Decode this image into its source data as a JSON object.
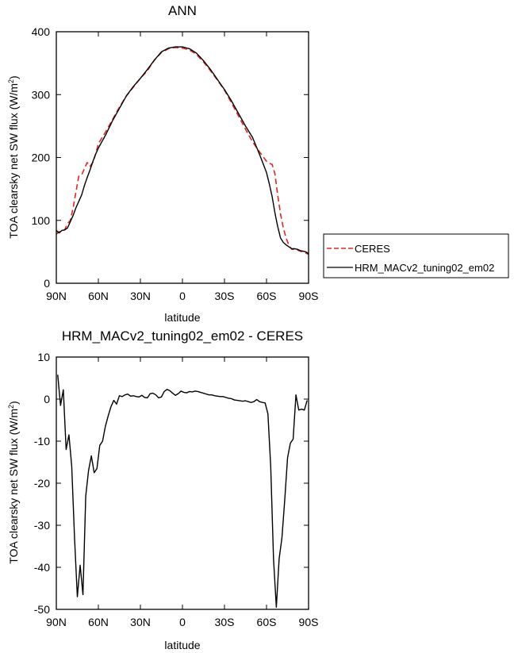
{
  "colors": {
    "ceres": "#e8231f",
    "model": "#000000",
    "frame": "#000000"
  },
  "chart_data": [
    {
      "type": "line",
      "title": "ANN",
      "xlabel": "latitude",
      "ylabel": "TOA clearsky net SW flux (W/m",
      "ylabel_sup": "2",
      "ylabel_end": ")",
      "xlim": [
        90,
        -90
      ],
      "ylim": [
        0,
        400
      ],
      "x_ticks": [
        90,
        60,
        30,
        0,
        -30,
        -60,
        -90
      ],
      "x_tick_labels": [
        "90N",
        "60N",
        "30N",
        "0",
        "30S",
        "60S",
        "90S"
      ],
      "y_ticks": [
        0,
        100,
        200,
        300,
        400
      ],
      "y_tick_labels": [
        "0",
        "100",
        "200",
        "300",
        "400"
      ],
      "legend": {
        "placement": "right-outside",
        "entries": [
          "CERES",
          "HRM_MACv2_tuning02_em02"
        ]
      },
      "series": [
        {
          "name": "CERES",
          "style": "dashed",
          "color_key": "ceres",
          "x": [
            90,
            88,
            86,
            84,
            82,
            80,
            78,
            76,
            74,
            72,
            70,
            68,
            66,
            64,
            62,
            60,
            55,
            50,
            45,
            40,
            35,
            30,
            25,
            20,
            15,
            10,
            5,
            0,
            -5,
            -10,
            -15,
            -20,
            -25,
            -30,
            -35,
            -40,
            -45,
            -50,
            -55,
            -60,
            -62,
            -64,
            -66,
            -68,
            -70,
            -72,
            -74,
            -76,
            -78,
            -80,
            -82,
            -84,
            -86,
            -88,
            -90
          ],
          "y": [
            78,
            82,
            82,
            85,
            95,
            100,
            120,
            145,
            170,
            172,
            182,
            192,
            186,
            192,
            205,
            222,
            240,
            260,
            280,
            298,
            312,
            326,
            338,
            355,
            367,
            373,
            375,
            374,
            371,
            364,
            352,
            338,
            323,
            307,
            287,
            266,
            245,
            225,
            209,
            194,
            191,
            189,
            174,
            140,
            110,
            88,
            72,
            60,
            54,
            54,
            53,
            51,
            50,
            48,
            46
          ]
        },
        {
          "name": "HRM_MACv2_tuning02_em02",
          "style": "solid",
          "color_key": "model",
          "x": [
            90,
            88,
            86,
            84,
            82,
            80,
            78,
            76,
            74,
            72,
            70,
            68,
            66,
            64,
            62,
            60,
            55,
            50,
            45,
            40,
            35,
            30,
            25,
            20,
            15,
            10,
            5,
            0,
            -5,
            -10,
            -15,
            -20,
            -25,
            -30,
            -35,
            -40,
            -45,
            -50,
            -55,
            -60,
            -62,
            -64,
            -66,
            -68,
            -70,
            -72,
            -74,
            -76,
            -78,
            -80,
            -82,
            -84,
            -86,
            -88,
            -90
          ],
          "y": [
            84,
            80,
            84,
            85,
            88,
            98,
            108,
            120,
            130,
            140,
            155,
            168,
            180,
            193,
            205,
            215,
            235,
            258,
            278,
            298,
            313,
            326,
            340,
            355,
            368,
            374,
            376,
            376,
            373,
            366,
            354,
            340,
            324,
            308,
            290,
            270,
            250,
            232,
            205,
            176,
            158,
            138,
            112,
            90,
            72,
            65,
            61,
            58,
            55,
            55,
            54,
            52,
            51,
            50,
            47
          ]
        }
      ]
    },
    {
      "type": "line",
      "title": "HRM_MACv2_tuning02_em02 - CERES",
      "xlabel": "latitude",
      "ylabel": "TOA clearsky net SW flux (W/m",
      "ylabel_sup": "2",
      "ylabel_end": ")",
      "xlim": [
        90,
        -90
      ],
      "ylim": [
        -50,
        10
      ],
      "x_ticks": [
        90,
        60,
        30,
        0,
        -30,
        -60,
        -90
      ],
      "x_tick_labels": [
        "90N",
        "60N",
        "30N",
        "0",
        "30S",
        "60S",
        "90S"
      ],
      "y_ticks": [
        10,
        0,
        -10,
        -20,
        -30,
        -40,
        -50
      ],
      "y_tick_labels": [
        "10",
        "0",
        "-10",
        "-20",
        "-30",
        "-40",
        "-50"
      ],
      "series": [
        {
          "style": "solid",
          "color_key": "model",
          "x": [
            89,
            87,
            85,
            83,
            81,
            79,
            77,
            75,
            73,
            71,
            69,
            67,
            65,
            63,
            61,
            59,
            57,
            55,
            53,
            51,
            49,
            47,
            45,
            43,
            41,
            39,
            37,
            35,
            33,
            31,
            29,
            27,
            25,
            23,
            21,
            19,
            17,
            15,
            13,
            11,
            9,
            7,
            5,
            3,
            1,
            -1,
            -3,
            -5,
            -7,
            -9,
            -11,
            -13,
            -15,
            -17,
            -19,
            -21,
            -23,
            -25,
            -27,
            -29,
            -31,
            -33,
            -35,
            -37,
            -39,
            -41,
            -43,
            -45,
            -47,
            -49,
            -51,
            -53,
            -55,
            -57,
            -59,
            -61,
            -63,
            -65,
            -67,
            -69,
            -71,
            -73,
            -75,
            -77,
            -79,
            -81,
            -83,
            -85,
            -87,
            -89
          ],
          "y": [
            5.8,
            -1.5,
            2.2,
            -12,
            -8.5,
            -16,
            -33,
            -47,
            -39.5,
            -46.5,
            -23,
            -17,
            -13.5,
            -17.5,
            -16.5,
            -11,
            -10,
            -6.5,
            -4,
            -1.8,
            -0.3,
            -1.2,
            0.8,
            0.6,
            1,
            1.2,
            0.7,
            0.8,
            0.6,
            0.5,
            0.9,
            0.4,
            0.3,
            1.3,
            1.4,
            1,
            0.3,
            0.5,
            1.8,
            2.3,
            2.0,
            1.4,
            0.9,
            1.3,
            1.9,
            1.6,
            1.5,
            1.8,
            1.7,
            1.9,
            1.8,
            1.6,
            1.4,
            1.2,
            1.0,
            1.0,
            0.8,
            0.7,
            0.6,
            0.6,
            0.4,
            0.2,
            0.1,
            -0.2,
            -0.3,
            -0.4,
            -0.5,
            -0.4,
            -0.6,
            -0.8,
            -0.6,
            -0.1,
            -0.6,
            -0.8,
            -0.9,
            -3.5,
            -16,
            -38,
            -49.5,
            -38,
            -33,
            -24,
            -14,
            -10.5,
            -9.5,
            1.0,
            -2.6,
            -2.4,
            -2.6,
            -0.3
          ]
        }
      ]
    }
  ]
}
